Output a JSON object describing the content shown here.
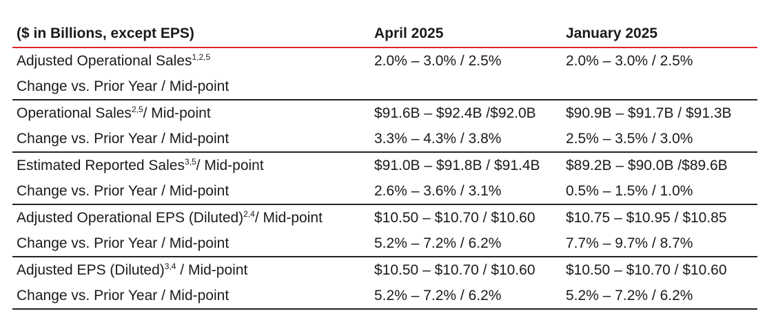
{
  "header": {
    "label": "($ in Billions, except EPS)",
    "col1": "April 2025",
    "col2": "January 2025"
  },
  "rows": [
    {
      "label": "Adjusted Operational Sales",
      "sup": "1,2,5",
      "suffix": "",
      "apr": "2.0% – 3.0% / 2.5%",
      "jan": "2.0% – 3.0% / 2.5%",
      "sub_label": "Change vs. Prior Year / Mid-point",
      "sub_apr": "",
      "sub_jan": ""
    },
    {
      "label": "Operational Sales",
      "sup": "2,5",
      "suffix": "/ Mid-point",
      "apr": "$91.6B – $92.4B /$92.0B",
      "jan": "$90.9B – $91.7B / $91.3B",
      "sub_label": "Change vs. Prior Year / Mid-point",
      "sub_apr": "3.3% – 4.3% / 3.8%",
      "sub_jan": "2.5% – 3.5% / 3.0%"
    },
    {
      "label": "Estimated Reported Sales",
      "sup": "3,5",
      "suffix": "/ Mid-point",
      "apr": "$91.0B – $91.8B / $91.4B",
      "jan": "$89.2B – $90.0B /$89.6B",
      "sub_label": "Change vs. Prior Year / Mid-point",
      "sub_apr": "2.6% – 3.6% / 3.1%",
      "sub_jan": "0.5% – 1.5% / 1.0%"
    },
    {
      "label": "Adjusted Operational EPS (Diluted)",
      "sup": "2,4",
      "suffix": "/ Mid-point",
      "apr": "$10.50 – $10.70 / $10.60",
      "jan": "$10.75 – $10.95 / $10.85",
      "sub_label": "Change vs. Prior Year / Mid-point",
      "sub_apr": "5.2% – 7.2% / 6.2%",
      "sub_jan": "7.7% – 9.7% / 8.7%"
    },
    {
      "label": "Adjusted EPS (Diluted)",
      "sup": "3,4",
      "suffix": " / Mid-point",
      "apr": "$10.50 – $10.70 / $10.60",
      "jan": "$10.50 – $10.70 / $10.60",
      "sub_label": "Change vs. Prior Year / Mid-point",
      "sub_apr": "5.2% – 7.2% / 6.2%",
      "sub_jan": "5.2% – 7.2% / 6.2%"
    }
  ]
}
